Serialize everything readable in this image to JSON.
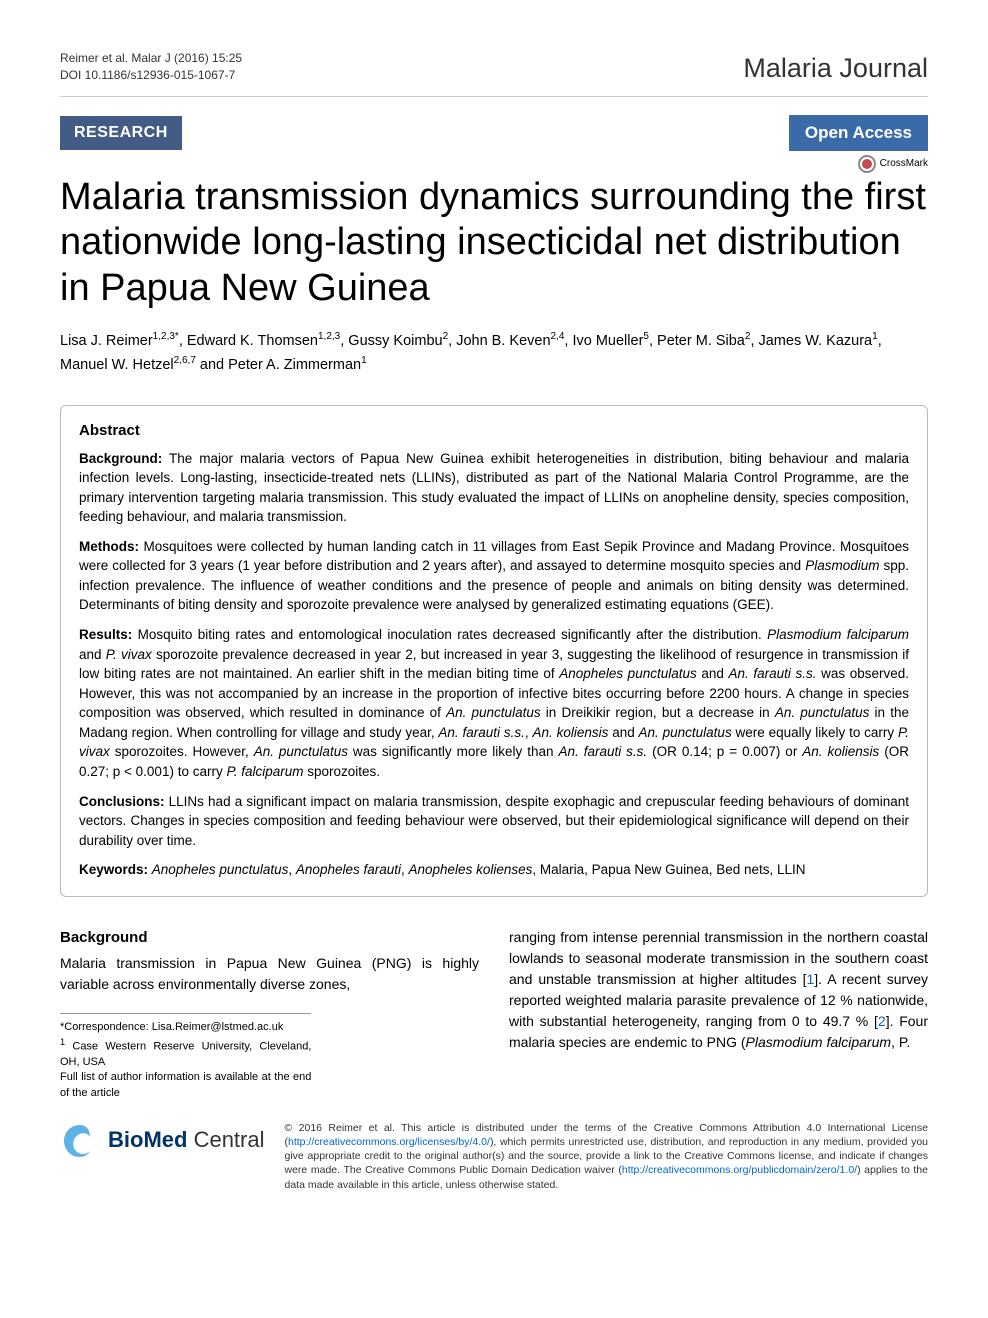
{
  "header": {
    "citation_line1": "Reimer et al. Malar J (2016) 15:25",
    "citation_line2": "DOI 10.1186/s12936-015-1067-7",
    "journal": "Malaria Journal"
  },
  "badges": {
    "research": "RESEARCH",
    "open_access": "Open Access",
    "crossmark": "CrossMark"
  },
  "title": "Malaria transmission dynamics surrounding the first nationwide long-lasting insecticidal net distribution in Papua New Guinea",
  "authors_html": "Lisa J. Reimer<sup>1,2,3*</sup>, Edward K. Thomsen<sup>1,2,3</sup>, Gussy Koimbu<sup>2</sup>, John B. Keven<sup>2,4</sup>, Ivo Mueller<sup>5</sup>, Peter M. Siba<sup>2</sup>, James W. Kazura<sup>1</sup>, Manuel W. Hetzel<sup>2,6,7</sup> and Peter A. Zimmerman<sup>1</sup>",
  "abstract": {
    "heading": "Abstract",
    "background_label": "Background:",
    "background_text": "The major malaria vectors of Papua New Guinea exhibit heterogeneities in distribution, biting behaviour and malaria infection levels. Long-lasting, insecticide-treated nets (LLINs), distributed as part of the National Malaria Control Programme, are the primary intervention targeting malaria transmission. This study evaluated the impact of LLINs on anopheline density, species composition, feeding behaviour, and malaria transmission.",
    "methods_label": "Methods:",
    "methods_text": "Mosquitoes were collected by human landing catch in 11 villages from East Sepik Province and Madang Province. Mosquitoes were collected for 3 years (1 year before distribution and 2 years after), and assayed to determine mosquito species and Plasmodium spp. infection prevalence. The influence of weather conditions and the presence of people and animals on biting density was determined. Determinants of biting density and sporozoite prevalence were analysed by generalized estimating equations (GEE).",
    "results_label": "Results:",
    "results_text": "Mosquito biting rates and entomological inoculation rates decreased significantly after the distribution. Plasmodium falciparum and P. vivax sporozoite prevalence decreased in year 2, but increased in year 3, suggesting the likelihood of resurgence in transmission if low biting rates are not maintained. An earlier shift in the median biting time of Anopheles punctulatus and An. farauti s.s. was observed. However, this was not accompanied by an increase in the proportion of infective bites occurring before 2200 hours. A change in species composition was observed, which resulted in dominance of An. punctulatus in Dreikikir region, but a decrease in An. punctulatus in the Madang region. When controlling for village and study year, An. farauti s.s., An. koliensis and An. punctulatus were equally likely to carry P. vivax sporozoites. However, An. punctulatus was significantly more likely than An. farauti s.s. (OR 0.14; p = 0.007) or An. koliensis (OR 0.27; p < 0.001) to carry P. falciparum sporozoites.",
    "conclusions_label": "Conclusions:",
    "conclusions_text": "LLINs had a significant impact on malaria transmission, despite exophagic and crepuscular feeding behaviours of dominant vectors. Changes in species composition and feeding behaviour were observed, but their epidemiological significance will depend on their durability over time.",
    "keywords_label": "Keywords:",
    "keywords_text": "Anopheles punctulatus, Anopheles farauti, Anopheles kolienses, Malaria, Papua New Guinea, Bed nets, LLIN"
  },
  "body": {
    "background_heading": "Background",
    "col1_text": "Malaria transmission in Papua New Guinea (PNG) is highly variable across environmentally diverse zones,",
    "col2_text_part1": "ranging from intense perennial transmission in the northern coastal lowlands to seasonal moderate transmission in the southern coast and unstable transmission at higher altitudes [",
    "col2_ref1": "1",
    "col2_text_part2": "]. A recent survey reported weighted malaria parasite prevalence of 12 % nationwide, with substantial heterogeneity, ranging from 0 to 49.7 % [",
    "col2_ref2": "2",
    "col2_text_part3": "]. Four malaria species are endemic to PNG (Plasmodium falciparum, P."
  },
  "footnotes": {
    "correspondence": "*Correspondence: Lisa.Reimer@lstmed.ac.uk",
    "affiliation": "1 Case Western Reserve University, Cleveland, OH, USA",
    "full_list": "Full list of author information is available at the end of the article"
  },
  "footer": {
    "bmc_label": "BioMed Central",
    "license_part1": "© 2016 Reimer et al. This article is distributed under the terms of the Creative Commons Attribution 4.0 International License (",
    "license_link1": "http://creativecommons.org/licenses/by/4.0/",
    "license_part2": "), which permits unrestricted use, distribution, and reproduction in any medium, provided you give appropriate credit to the original author(s) and the source, provide a link to the Creative Commons license, and indicate if changes were made. The Creative Commons Public Domain Dedication waiver (",
    "license_link2": "http://creativecommons.org/publicdomain/zero/1.0/",
    "license_part3": ") applies to the data made available in this article, unless otherwise stated."
  },
  "colors": {
    "research_badge_bg": "#435c86",
    "openaccess_bg": "#3a6aa8",
    "link_color": "#0066cc",
    "bmc_blue": "#003366",
    "bmc_swirl": "#5eb3e4"
  }
}
